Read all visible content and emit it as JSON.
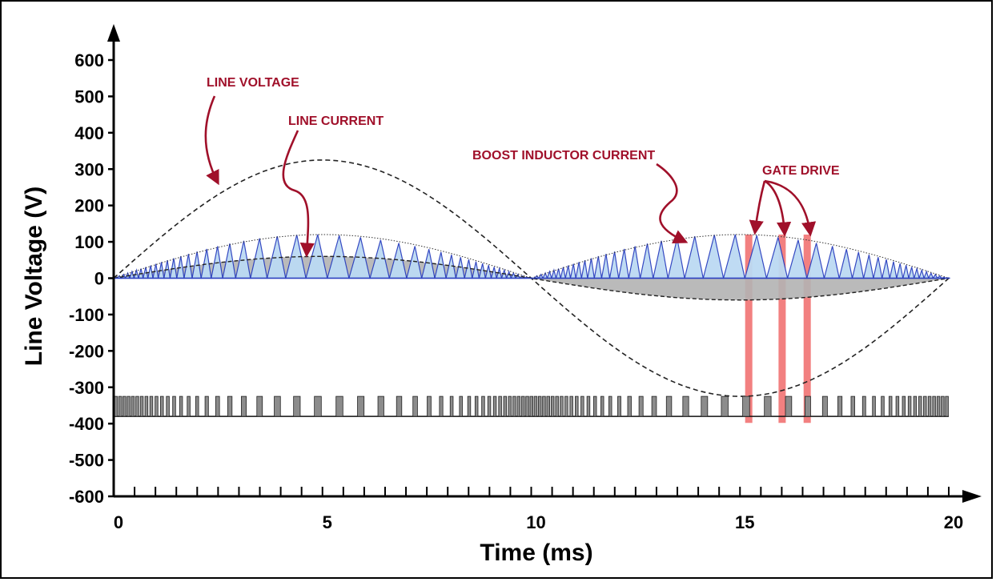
{
  "chart_data": {
    "type": "line",
    "xlabel": "Time (ms)",
    "ylabel": "Line Voltage (V)",
    "xlim": [
      0,
      20
    ],
    "ylim": [
      -600,
      600
    ],
    "xticks": [
      "0",
      "5",
      "10",
      "15",
      "20"
    ],
    "yticks": [
      "600",
      "500",
      "400",
      "300",
      "200",
      "100",
      "0",
      "-100",
      "-200",
      "-300",
      "-400",
      "-500",
      "-600"
    ],
    "grid": false,
    "series": [
      {
        "kind": "sine",
        "period_ms": 20,
        "amplitude": 325
      },
      {
        "kind": "sine",
        "period_ms": 20,
        "amplitude": 60
      },
      {
        "kind": "inductor-envelope",
        "amplitude": 120
      },
      {
        "kind": "gate-drive",
        "level": -380
      }
    ],
    "annotations": [
      {
        "text": "LINE VOLTAGE",
        "target_x": 2.6,
        "target_y": 260
      },
      {
        "text": "LINE CURRENT",
        "target_x": 4.7,
        "target_y": 60
      },
      {
        "text": "BOOST INDUCTOR CURRENT",
        "target_x": 13.5,
        "target_y": 95
      },
      {
        "text": "GATE DRIVE",
        "targets_x": [
          15.1,
          15.9,
          16.6
        ]
      }
    ],
    "gate_highlights_x": [
      15.2,
      16.0,
      16.6
    ],
    "colors": {
      "inductor_fill": "#bcdaf3",
      "inductor_stroke": "#2a3fbf",
      "current_fill": "#b3b3b3",
      "gate_fill": "#8c8c8c",
      "highlight": "#f06a6a",
      "annotation": "#a0102a"
    }
  }
}
